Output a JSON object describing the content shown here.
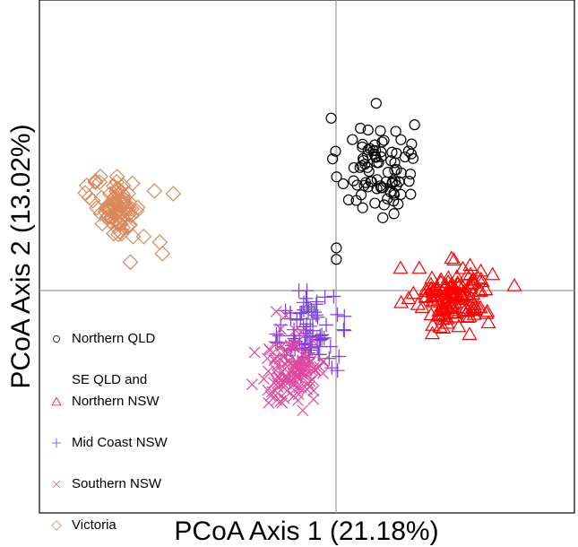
{
  "chart_data": {
    "type": "scatter",
    "title": "",
    "xlabel": "PCoA Axis 1 (21.18%)",
    "ylabel": "PCoA Axis 2 (13.02%)",
    "xlim": [
      -0.55,
      0.45
    ],
    "ylim": [
      -0.4,
      0.5
    ],
    "grid": false,
    "reference_lines": {
      "x": 0,
      "y": 0
    },
    "legend_position": "bottom-left",
    "series": [
      {
        "name": "Northern QLD",
        "label_lines": [
          "Northern QLD"
        ],
        "marker": "circle",
        "color": "#000000",
        "cluster": {
          "cx": 0.08,
          "cy": 0.205,
          "sx": 0.035,
          "sy": 0.045,
          "n": 85
        },
        "extra_points": [
          [
            0.005,
            0.065
          ],
          [
            0.005,
            0.045
          ],
          [
            0.14,
            0.235
          ],
          [
            0.145,
            0.23
          ],
          [
            0.035,
            0.255
          ],
          [
            0.05,
            0.275
          ]
        ]
      },
      {
        "name": "SE QLD and Northern NSW",
        "label_lines": [
          "SE QLD and",
          "Northern NSW"
        ],
        "marker": "triangle",
        "color": "#ff0000",
        "cluster": {
          "cx": 0.225,
          "cy": -0.02,
          "sx": 0.035,
          "sy": 0.025,
          "n": 140
        },
        "extra_points": [
          [
            0.125,
            0.03
          ],
          [
            0.16,
            0.03
          ],
          [
            0.255,
            0.035
          ],
          [
            0.275,
            0.025
          ],
          [
            0.185,
            -0.07
          ],
          [
            0.205,
            -0.075
          ]
        ]
      },
      {
        "name": "Mid Coast NSW",
        "label_lines": [
          "Mid Coast NSW"
        ],
        "marker": "plus",
        "color": "#7b3fe0",
        "cluster": {
          "cx": -0.045,
          "cy": -0.09,
          "sx": 0.025,
          "sy": 0.035,
          "n": 80
        },
        "extra_points": [
          [
            -0.05,
            -0.01
          ],
          [
            -0.065,
            -0.01
          ],
          [
            0.0,
            -0.02
          ],
          [
            0.02,
            -0.08
          ],
          [
            0.02,
            -0.055
          ],
          [
            -0.09,
            -0.045
          ]
        ]
      },
      {
        "name": "Southern NSW",
        "label_lines": [
          "Southern NSW"
        ],
        "marker": "x",
        "color": "#e0479e",
        "cluster": {
          "cx": -0.075,
          "cy": -0.145,
          "sx": 0.03,
          "sy": 0.035,
          "n": 110
        },
        "extra_points": [
          [
            -0.105,
            -0.19
          ],
          [
            -0.075,
            -0.195
          ],
          [
            -0.065,
            -0.18
          ],
          [
            -0.02,
            -0.135
          ],
          [
            -0.02,
            -0.155
          ]
        ]
      },
      {
        "name": "Victoria",
        "label_lines": [
          "Victoria"
        ],
        "marker": "diamond",
        "color": "#d9895a",
        "cluster": {
          "cx": -0.405,
          "cy": 0.135,
          "sx": 0.022,
          "sy": 0.025,
          "n": 85
        },
        "extra_points": [
          [
            -0.335,
            0.165
          ],
          [
            -0.3,
            0.16
          ],
          [
            -0.355,
            0.085
          ],
          [
            -0.325,
            0.075
          ],
          [
            -0.375,
            0.085
          ],
          [
            -0.38,
            0.04
          ],
          [
            -0.32,
            0.055
          ]
        ]
      }
    ]
  }
}
